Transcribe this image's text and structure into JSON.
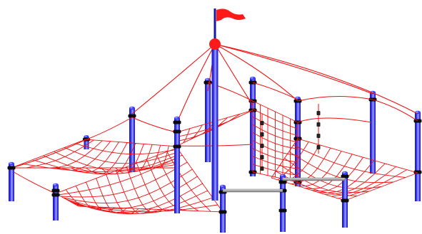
{
  "colors": {
    "background": "#ffffff",
    "net": "#ee1111",
    "post_dark": "#1515a8",
    "post_mid": "#3d3dff",
    "post_light": "#a8a8ff",
    "collar": "#0a0a0a",
    "flag": "#ff1a1a",
    "bar": "#b8b8b8",
    "bar_edge": "#555555"
  }
}
